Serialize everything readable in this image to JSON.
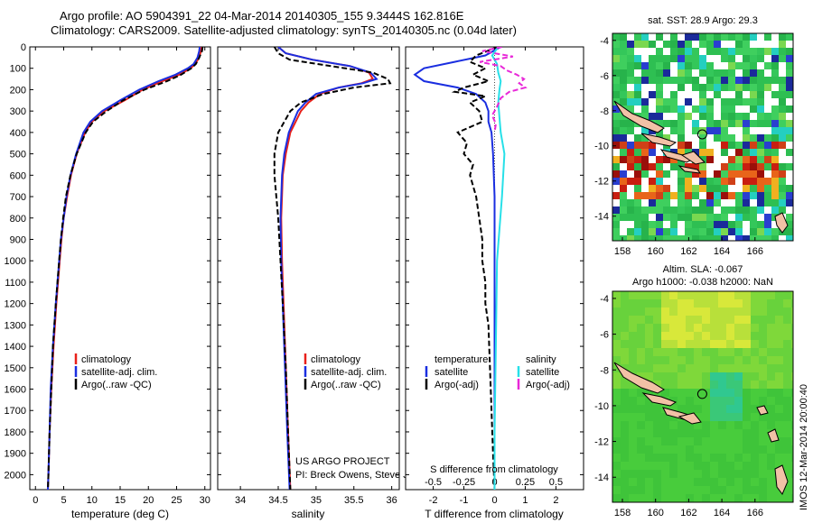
{
  "header": {
    "line1": "Argo profile: AO 5904391_22 04-Mar-2014 20140305_155 9.3444S 162.816E",
    "line2": "Climatology: CARS2009. Satellite-adjusted climatology: synTS_20140305.nc (0.04d later)"
  },
  "colors": {
    "climatology": "#e8201a",
    "satellite": "#1a2ee0",
    "argo": "#000000",
    "sat_salinity": "#27e0e8",
    "argo_salinity": "#e828d8"
  },
  "depth_axis": {
    "ticks": [
      0,
      100,
      200,
      300,
      400,
      500,
      600,
      700,
      800,
      900,
      1000,
      1100,
      1200,
      1300,
      1400,
      1500,
      1600,
      1700,
      1800,
      1900,
      2000
    ],
    "max": 2070
  },
  "chart_data": [
    {
      "type": "line",
      "id": "temperature",
      "xlabel": "temperature (deg C)",
      "xlim": [
        -1,
        31
      ],
      "xticks": [
        0,
        5,
        10,
        15,
        20,
        25,
        30
      ],
      "ylim": [
        2070,
        0
      ],
      "legend": [
        "climatology",
        "satellite-adj. clim.",
        "Argo(..raw -QC)"
      ],
      "series": [
        {
          "name": "climatology",
          "depth": [
            0,
            20,
            50,
            80,
            100,
            130,
            160,
            200,
            250,
            300,
            350,
            400,
            500,
            600,
            700,
            800,
            900,
            1000,
            1200,
            1400,
            1600,
            1800,
            2000,
            2070
          ],
          "values": [
            29.4,
            29.3,
            29.0,
            28.3,
            27.5,
            25.5,
            22.5,
            19.0,
            15.8,
            12.2,
            10.0,
            8.8,
            7.3,
            6.3,
            5.6,
            5.0,
            4.6,
            4.3,
            3.7,
            3.2,
            2.8,
            2.5,
            2.3,
            2.2
          ]
        },
        {
          "name": "satellite-adj. clim.",
          "depth": [
            0,
            20,
            50,
            80,
            100,
            130,
            160,
            200,
            250,
            300,
            350,
            400,
            500,
            600,
            700,
            800,
            900,
            1000,
            1200,
            1400,
            1600,
            1800,
            2000,
            2070
          ],
          "values": [
            29.1,
            29.0,
            28.7,
            28.0,
            27.0,
            24.8,
            21.8,
            18.4,
            15.0,
            11.8,
            9.7,
            8.5,
            7.2,
            6.2,
            5.5,
            5.0,
            4.5,
            4.2,
            3.6,
            3.1,
            2.7,
            2.5,
            2.3,
            2.2
          ]
        },
        {
          "name": "Argo(..raw -QC)",
          "depth": [
            0,
            20,
            50,
            80,
            100,
            130,
            160,
            200,
            250,
            300,
            350,
            400,
            500,
            600,
            700,
            800,
            900,
            1000,
            1200,
            1400,
            1600,
            1800,
            2000,
            2070
          ],
          "values": [
            29.6,
            29.5,
            29.0,
            28.4,
            27.6,
            25.8,
            23.3,
            19.3,
            15.5,
            12.6,
            10.2,
            8.9,
            7.3,
            6.2,
            5.4,
            4.9,
            4.5,
            4.2,
            3.6,
            3.1,
            2.8,
            2.5,
            2.3,
            2.2
          ]
        }
      ]
    },
    {
      "type": "line",
      "id": "salinity",
      "xlabel": "salinity",
      "xlim": [
        33.7,
        36.1
      ],
      "xticks": [
        34,
        34.5,
        35,
        35.5,
        36
      ],
      "ylim": [
        2070,
        0
      ],
      "legend": [
        "climatology",
        "satellite-adj. clim.",
        "Argo(..raw -QC)"
      ],
      "series": [
        {
          "name": "climatology",
          "depth": [
            0,
            30,
            60,
            90,
            120,
            150,
            170,
            190,
            220,
            260,
            300,
            400,
            500,
            600,
            800,
            1000,
            1200,
            1500,
            1800,
            2070
          ],
          "values": [
            34.5,
            34.6,
            34.95,
            35.45,
            35.7,
            35.75,
            35.6,
            35.3,
            35.05,
            34.9,
            34.8,
            34.66,
            34.6,
            34.56,
            34.54,
            34.55,
            34.57,
            34.6,
            34.63,
            34.66
          ]
        },
        {
          "name": "satellite-adj. clim.",
          "depth": [
            0,
            30,
            60,
            90,
            120,
            150,
            170,
            190,
            220,
            260,
            300,
            400,
            500,
            600,
            800,
            1000,
            1200,
            1500,
            1800,
            2070
          ],
          "values": [
            34.5,
            34.6,
            34.95,
            35.45,
            35.72,
            35.8,
            35.62,
            35.3,
            35.0,
            34.86,
            34.76,
            34.64,
            34.58,
            34.55,
            34.53,
            34.54,
            34.56,
            34.59,
            34.62,
            34.65
          ]
        },
        {
          "name": "Argo(..raw -QC)",
          "depth": [
            0,
            30,
            60,
            90,
            120,
            150,
            170,
            190,
            220,
            260,
            300,
            400,
            500,
            600,
            800,
            1000,
            1200,
            1500,
            1800,
            2070
          ],
          "values": [
            34.45,
            34.5,
            34.65,
            35.2,
            35.75,
            35.95,
            35.98,
            35.5,
            35.1,
            34.8,
            34.66,
            34.5,
            34.45,
            34.45,
            34.5,
            34.53,
            34.56,
            34.6,
            34.63,
            34.66
          ]
        }
      ]
    },
    {
      "type": "line",
      "id": "difference",
      "xlabel": "T difference from climatology",
      "top_label": "S difference from climatology",
      "xlim": [
        -2.9,
        2.9
      ],
      "xticks": [
        -2,
        -1,
        0,
        1,
        2
      ],
      "top_ticks": [
        "-0.5",
        "-0.25",
        "0",
        "0.25",
        "0.5"
      ],
      "ylim": [
        2070,
        0
      ],
      "legend_temperature": {
        "title": "temperature",
        "items": [
          "satellite",
          "Argo(-adj)"
        ]
      },
      "legend_salinity": {
        "title": "salinity",
        "items": [
          "satellite",
          "Argo(-adj)"
        ]
      },
      "series": [
        {
          "name": "temperature satellite",
          "depth": [
            0,
            40,
            70,
            100,
            130,
            160,
            190,
            220,
            260,
            300,
            350,
            400,
            500,
            700,
            1000,
            1400,
            1800,
            2070
          ],
          "values": [
            0.2,
            -0.3,
            -1.3,
            -2.3,
            -2.6,
            -2.3,
            -1.2,
            -0.6,
            -0.3,
            -0.2,
            -0.2,
            -0.1,
            -0.05,
            0,
            0,
            0,
            0,
            0
          ]
        },
        {
          "name": "temperature Argo(-adj)",
          "depth": [
            0,
            40,
            70,
            100,
            130,
            160,
            190,
            210,
            230,
            260,
            300,
            350,
            400,
            450,
            500,
            550,
            600,
            700,
            800,
            900,
            1000,
            1100,
            1200,
            1300,
            1500,
            1700,
            1900,
            2070
          ],
          "values": [
            0.1,
            -0.6,
            -0.8,
            -0.3,
            -0.7,
            -0.2,
            -1.0,
            -1.3,
            -0.3,
            -0.8,
            -0.5,
            -0.4,
            -1.2,
            -0.9,
            -1.0,
            -0.7,
            -0.8,
            -0.6,
            -0.5,
            -0.4,
            -0.4,
            -0.3,
            -0.3,
            -0.2,
            -0.15,
            -0.1,
            -0.05,
            0
          ]
        },
        {
          "name": "salinity satellite",
          "depth": [
            0,
            40,
            80,
            120,
            160,
            200,
            260,
            330,
            400,
            500,
            700,
            1000,
            1400,
            1800,
            2070
          ],
          "values": [
            0.03,
            -0.02,
            0.02,
            0.03,
            0.05,
            0.04,
            0.03,
            0.04,
            0.05,
            0.08,
            0.06,
            0.02,
            0.01,
            0,
            0
          ]
        },
        {
          "name": "salinity Argo(-adj)",
          "depth": [
            0,
            20,
            45,
            70,
            90,
            110,
            130,
            150,
            170,
            190,
            210,
            240,
            280,
            320,
            360,
            400
          ],
          "values": [
            0.06,
            -0.1,
            0.15,
            -0.12,
            0.05,
            0.1,
            0.18,
            0.24,
            0.2,
            0.25,
            0.12,
            0.05,
            0.02,
            -0.02,
            0.01,
            0
          ]
        }
      ],
      "project_text": [
        "US ARGO PROJECT",
        "PI: Breck Owens, Steve Jayne, and P.E. Robbi"
      ]
    },
    {
      "type": "heatmap",
      "id": "sst_map",
      "title": "sat. SST: 28.9 Argo: 29.3",
      "xlim": [
        157.4,
        168.3
      ],
      "ylim": [
        -15.4,
        -3.6
      ],
      "xticks": [
        158,
        160,
        162,
        164,
        166
      ],
      "yticks": [
        -4,
        -6,
        -8,
        -10,
        -12,
        -14
      ],
      "marker": {
        "lon": 162.816,
        "lat": -9.3444
      }
    },
    {
      "type": "heatmap",
      "id": "sla_map",
      "title_line1": "Altim. SLA: -0.067",
      "title_line2": "Argo h1000: -0.038 h2000: NaN",
      "xlim": [
        157.4,
        168.3
      ],
      "ylim": [
        -15.4,
        -3.6
      ],
      "xticks": [
        158,
        160,
        162,
        164,
        166
      ],
      "yticks": [
        -4,
        -6,
        -8,
        -10,
        -12,
        -14
      ],
      "marker": {
        "lon": 162.816,
        "lat": -9.3444
      }
    }
  ],
  "side_text": "IMOS 12-Mar-2014 20:00:40"
}
